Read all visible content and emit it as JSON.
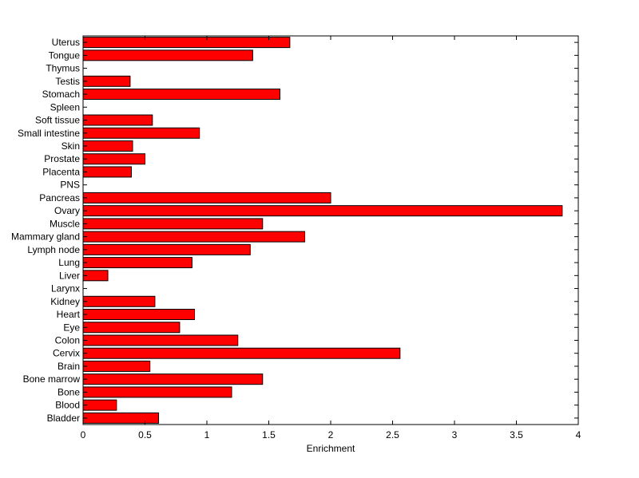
{
  "chart_data": {
    "type": "bar",
    "orientation": "horizontal",
    "title": "",
    "xlabel": "Enrichment",
    "ylabel": "",
    "xlim": [
      0,
      4
    ],
    "xticks": [
      "0",
      "0.5",
      "1",
      "1.5",
      "2",
      "2.5",
      "3",
      "3.5",
      "4"
    ],
    "grid": false,
    "legend": "none",
    "bar_color": "#ff0000",
    "categories": [
      "Bladder",
      "Blood",
      "Bone",
      "Bone marrow",
      "Brain",
      "Cervix",
      "Colon",
      "Eye",
      "Heart",
      "Kidney",
      "Larynx",
      "Liver",
      "Lung",
      "Lymph node",
      "Mammary gland",
      "Muscle",
      "Ovary",
      "Pancreas",
      "PNS",
      "Placenta",
      "Prostate",
      "Skin",
      "Small intestine",
      "Soft tissue",
      "Spleen",
      "Stomach",
      "Testis",
      "Thymus",
      "Tongue",
      "Uterus"
    ],
    "values": [
      0.61,
      0.27,
      1.2,
      1.45,
      0.54,
      2.56,
      1.25,
      0.78,
      0.9,
      0.58,
      0,
      0.2,
      0.88,
      1.35,
      1.79,
      1.45,
      3.87,
      2.0,
      0,
      0.39,
      0.5,
      0.4,
      0.94,
      0.56,
      0,
      1.59,
      0.38,
      0,
      1.37,
      1.67
    ]
  }
}
